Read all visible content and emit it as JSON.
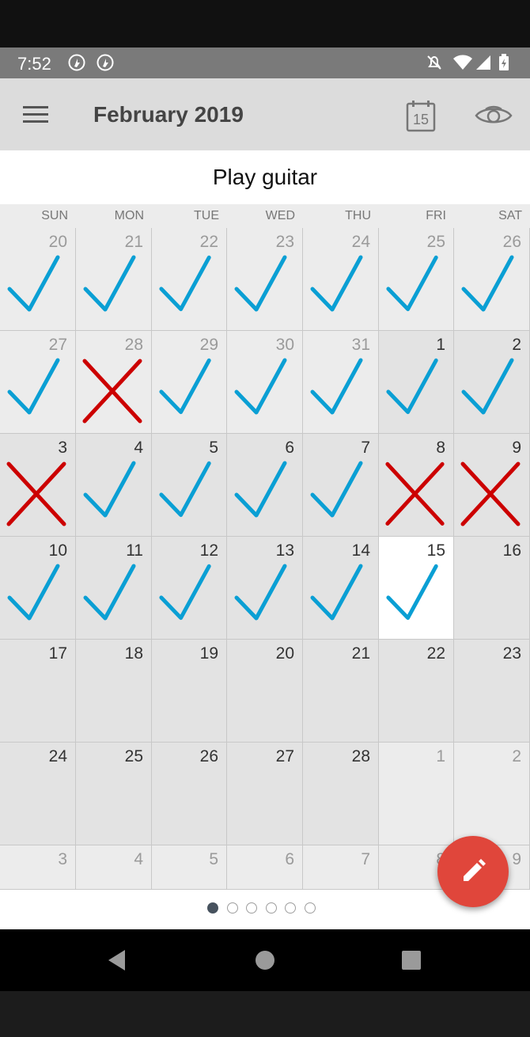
{
  "status_bar": {
    "time": "7:52",
    "left_icons": [
      "notification-icon",
      "notification-icon"
    ],
    "right_icons": [
      "do-not-disturb-icon",
      "wifi-icon",
      "signal-icon",
      "battery-icon"
    ]
  },
  "app_bar": {
    "title": "February 2019",
    "menu_icon": "menu-icon",
    "today_label": "15",
    "view_icon": "eye-icon"
  },
  "habit_name": "Play guitar",
  "weekdays": [
    "SUN",
    "MON",
    "TUE",
    "WED",
    "THU",
    "FRI",
    "SAT"
  ],
  "weeks": [
    [
      {
        "day": "20",
        "mark": "check",
        "outside": true
      },
      {
        "day": "21",
        "mark": "check",
        "outside": true
      },
      {
        "day": "22",
        "mark": "check",
        "outside": true
      },
      {
        "day": "23",
        "mark": "check",
        "outside": true
      },
      {
        "day": "24",
        "mark": "check",
        "outside": true
      },
      {
        "day": "25",
        "mark": "check",
        "outside": true
      },
      {
        "day": "26",
        "mark": "check",
        "outside": true
      }
    ],
    [
      {
        "day": "27",
        "mark": "check",
        "outside": true
      },
      {
        "day": "28",
        "mark": "cross",
        "outside": true
      },
      {
        "day": "29",
        "mark": "check",
        "outside": true
      },
      {
        "day": "30",
        "mark": "check",
        "outside": true
      },
      {
        "day": "31",
        "mark": "check",
        "outside": true
      },
      {
        "day": "1",
        "mark": "check",
        "outside": false
      },
      {
        "day": "2",
        "mark": "check",
        "outside": false
      }
    ],
    [
      {
        "day": "3",
        "mark": "cross",
        "outside": false
      },
      {
        "day": "4",
        "mark": "check",
        "outside": false
      },
      {
        "day": "5",
        "mark": "check",
        "outside": false
      },
      {
        "day": "6",
        "mark": "check",
        "outside": false
      },
      {
        "day": "7",
        "mark": "check",
        "outside": false
      },
      {
        "day": "8",
        "mark": "cross",
        "outside": false
      },
      {
        "day": "9",
        "mark": "cross",
        "outside": false
      }
    ],
    [
      {
        "day": "10",
        "mark": "check",
        "outside": false
      },
      {
        "day": "11",
        "mark": "check",
        "outside": false
      },
      {
        "day": "12",
        "mark": "check",
        "outside": false
      },
      {
        "day": "13",
        "mark": "check",
        "outside": false
      },
      {
        "day": "14",
        "mark": "check",
        "outside": false
      },
      {
        "day": "15",
        "mark": "check",
        "outside": false,
        "today": true
      },
      {
        "day": "16",
        "mark": "none",
        "outside": false
      }
    ],
    [
      {
        "day": "17",
        "mark": "none",
        "outside": false
      },
      {
        "day": "18",
        "mark": "none",
        "outside": false
      },
      {
        "day": "19",
        "mark": "none",
        "outside": false
      },
      {
        "day": "20",
        "mark": "none",
        "outside": false
      },
      {
        "day": "21",
        "mark": "none",
        "outside": false
      },
      {
        "day": "22",
        "mark": "none",
        "outside": false
      },
      {
        "day": "23",
        "mark": "none",
        "outside": false
      }
    ],
    [
      {
        "day": "24",
        "mark": "none",
        "outside": false
      },
      {
        "day": "25",
        "mark": "none",
        "outside": false
      },
      {
        "day": "26",
        "mark": "none",
        "outside": false
      },
      {
        "day": "27",
        "mark": "none",
        "outside": false
      },
      {
        "day": "28",
        "mark": "none",
        "outside": false
      },
      {
        "day": "1",
        "mark": "none",
        "outside": true
      },
      {
        "day": "2",
        "mark": "none",
        "outside": true
      }
    ],
    [
      {
        "day": "3",
        "mark": "none",
        "outside": true
      },
      {
        "day": "4",
        "mark": "none",
        "outside": true
      },
      {
        "day": "5",
        "mark": "none",
        "outside": true
      },
      {
        "day": "6",
        "mark": "none",
        "outside": true
      },
      {
        "day": "7",
        "mark": "none",
        "outside": true
      },
      {
        "day": "8",
        "mark": "none",
        "outside": true
      },
      {
        "day": "9",
        "mark": "none",
        "outside": true
      }
    ]
  ],
  "pager": {
    "count": 6,
    "active_index": 0
  },
  "fab": {
    "icon": "pencil-icon"
  },
  "nav_bar": {
    "icons": [
      "back-icon",
      "home-icon",
      "recents-icon"
    ]
  },
  "colors": {
    "check": "#0a9fd4",
    "cross": "#cc0000",
    "fab": "#e0463b",
    "cell_current": "#e3e3e3",
    "cell_outside": "#ececec",
    "cell_today": "#ffffff",
    "num_current": "#333333",
    "num_outside": "#9a9a9a"
  }
}
